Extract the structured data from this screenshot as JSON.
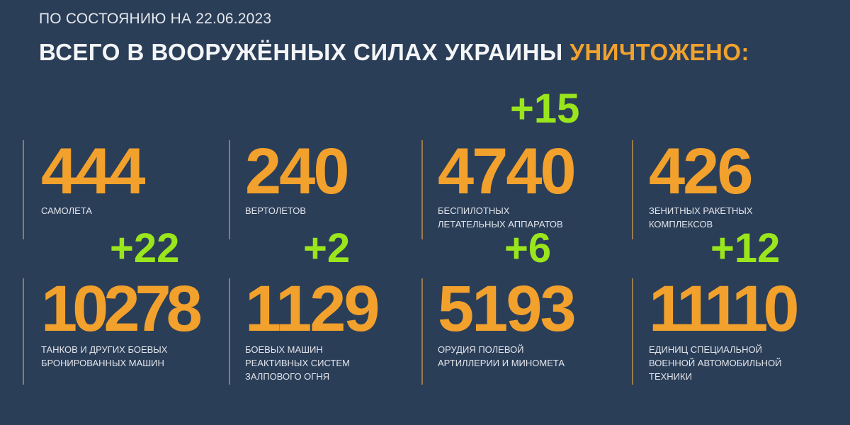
{
  "header": {
    "subtitle": "ПО СОСТОЯНИЮ НА 22.06.2023",
    "title": "ВСЕГО В ВООРУЖЁННЫХ СИЛАХ УКРАИНЫ",
    "title_highlight": "УНИЧТОЖЕНО:"
  },
  "colors": {
    "background": "#2b3e58",
    "number": "#f2a12c",
    "delta": "#9ae61c"
  },
  "stats": [
    {
      "value": "444",
      "label": [
        "САМОЛЕТА"
      ],
      "delta": ""
    },
    {
      "value": "240",
      "label": [
        "ВЕРТОЛЕТОВ"
      ],
      "delta": ""
    },
    {
      "value": "4740",
      "label": [
        "БЕСПИЛОТНЫХ",
        "ЛЕТАТЕЛЬНЫХ АППАРАТОВ"
      ],
      "delta": "+15"
    },
    {
      "value": "426",
      "label": [
        "ЗЕНИТНЫХ РАКЕТНЫХ",
        "КОМПЛЕКСОВ"
      ],
      "delta": ""
    },
    {
      "value": "10278",
      "label": [
        "ТАНКОВ И ДРУГИХ БОЕВЫХ",
        "БРОНИРОВАННЫХ МАШИН"
      ],
      "delta": "+22"
    },
    {
      "value": "1129",
      "label": [
        "БОЕВЫХ МАШИН",
        "РЕАКТИВНЫХ СИСТЕМ",
        "ЗАЛПОВОГО ОГНЯ"
      ],
      "delta": "+2"
    },
    {
      "value": "5193",
      "label": [
        "ОРУДИЯ ПОЛЕВОЙ",
        "АРТИЛЛЕРИИ И МИНОМЕТА"
      ],
      "delta": "+6"
    },
    {
      "value": "11110",
      "label": [
        "ЕДИНИЦ СПЕЦИАЛЬНОЙ",
        "ВОЕННОЙ АВТОМОБИЛЬНОЙ",
        "ТЕХНИКИ"
      ],
      "delta": "+12"
    }
  ]
}
